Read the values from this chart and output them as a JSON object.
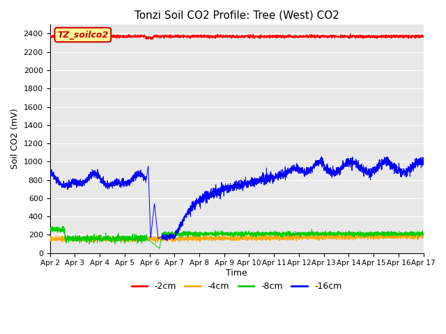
{
  "title": "Tonzi Soil CO2 Profile: Tree (West) CO2",
  "ylabel": "Soil CO2 (mV)",
  "xlabel": "Time",
  "ylim": [
    0,
    2500
  ],
  "yticks": [
    0,
    200,
    400,
    600,
    800,
    1000,
    1200,
    1400,
    1600,
    1800,
    2000,
    2200,
    2400
  ],
  "background_color": "#e8e8e8",
  "legend_entries": [
    "-2cm",
    "-4cm",
    "-8cm",
    "-16cm"
  ],
  "legend_colors": [
    "#ff0000",
    "#ffaa00",
    "#00cc00",
    "#0000ff"
  ],
  "watermark_text": "TZ_soilco2",
  "watermark_color": "#cc0000",
  "watermark_bg": "#ffff99",
  "watermark_border": "#cc0000",
  "num_points": 3600,
  "x_start": 2.0,
  "x_end": 17.0,
  "xtick_labels": [
    "Apr 2",
    "Apr 3",
    "Apr 4",
    "Apr 5",
    "Apr 6",
    "Apr 7",
    "Apr 8",
    "Apr 9",
    "Apr 10",
    "Apr 11",
    "Apr 12",
    "Apr 13",
    "Apr 14",
    "Apr 15",
    "Apr 16",
    "Apr 17"
  ],
  "xtick_positions": [
    2,
    3,
    4,
    5,
    6,
    7,
    8,
    9,
    10,
    11,
    12,
    13,
    14,
    15,
    16,
    17
  ]
}
